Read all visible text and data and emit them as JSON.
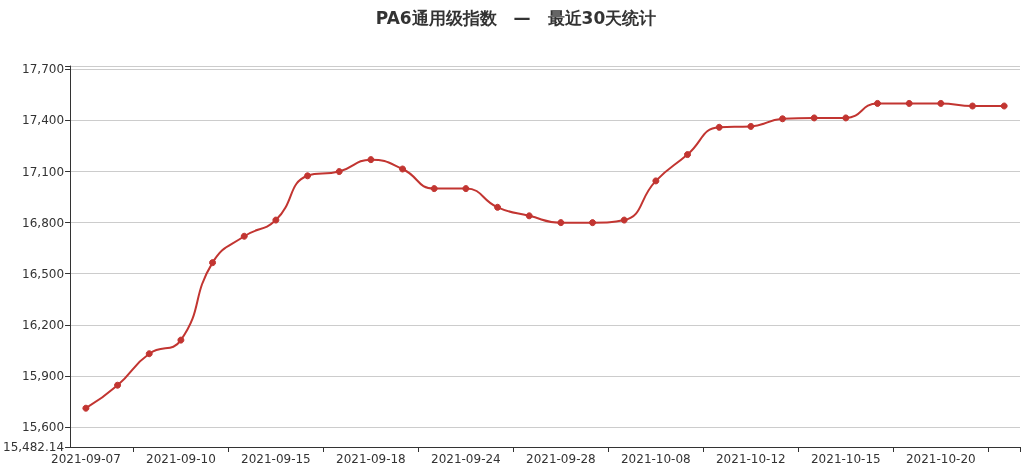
{
  "chart_data": {
    "type": "line",
    "title": "PA6通用级指数　—　最近30天统计",
    "categories": [
      "2021-09-07",
      null,
      null,
      "2021-09-10",
      null,
      null,
      "2021-09-15",
      null,
      null,
      "2021-09-18",
      null,
      null,
      "2021-09-24",
      null,
      null,
      "2021-09-28",
      null,
      null,
      "2021-10-08",
      null,
      null,
      "2021-10-12",
      null,
      null,
      "2021-10-15",
      null,
      null,
      "2021-10-20",
      null,
      null
    ],
    "series": [
      {
        "color": "#c23531",
        "values": [
          15710,
          15845,
          16030,
          16110,
          16565,
          16720,
          16815,
          17075,
          17100,
          17170,
          17115,
          17000,
          17000,
          16890,
          16840,
          16800,
          16800,
          16815,
          17045,
          17200,
          17360,
          17365,
          17410,
          17415,
          17415,
          17500,
          17500,
          17500,
          17485,
          17485
        ]
      }
    ],
    "ylim": [
      15482.14,
      17720
    ],
    "yticks": [
      {
        "value": 15482.14,
        "label": "15,482.14"
      },
      {
        "value": 15600,
        "label": "15,600"
      },
      {
        "value": 15900,
        "label": "15,900"
      },
      {
        "value": 16200,
        "label": "16,200"
      },
      {
        "value": 16500,
        "label": "16,500"
      },
      {
        "value": 16800,
        "label": "16,800"
      },
      {
        "value": 17100,
        "label": "17,100"
      },
      {
        "value": 17400,
        "label": "17,400"
      },
      {
        "value": 17700,
        "label": "17,700"
      },
      {
        "value": 17720,
        "label": null
      }
    ],
    "grid": "y",
    "marker": "circle",
    "line_style": "solid"
  }
}
